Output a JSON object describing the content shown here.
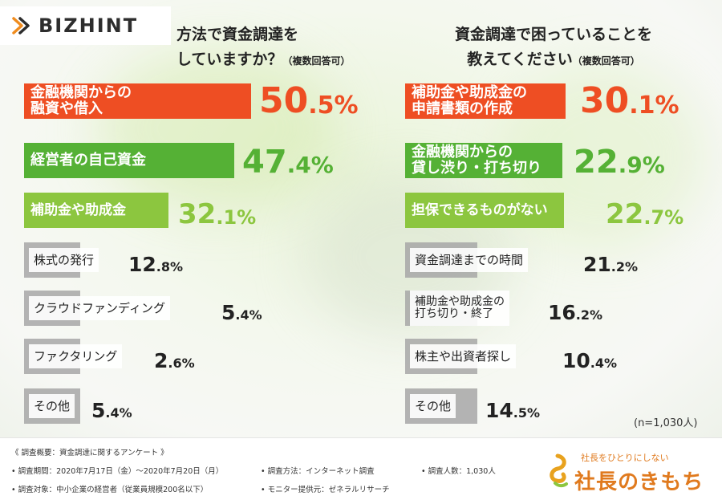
{
  "logo": {
    "text": "BIZHINT",
    "icon": "bizhint-chevron-icon"
  },
  "left_title": {
    "line1": "方法で資金調達を",
    "line2": "していますか？",
    "note": "（複数回答可）"
  },
  "right_title": {
    "line1": "資金調達で困っていることを",
    "line2": "教えてください",
    "note": "（複数回答可）"
  },
  "sample_note": "(n=1,030人)",
  "colors": {
    "top1": "#ee4e23",
    "top2": "#55b135",
    "top3": "#8cc63f",
    "other": "#a7a7a7",
    "brand": "#e07a1e"
  },
  "chart_data": [
    {
      "type": "bar",
      "orientation": "horizontal",
      "title": "方法で資金調達をしていますか？（複数回答可）",
      "unit": "%",
      "categories": [
        "金融機関からの融資や借入",
        "経営者の自己資金",
        "補助金や助成金",
        "株式の発行",
        "クラウドファンディング",
        "ファクタリング",
        "その他"
      ],
      "category_lines": [
        [
          "金融機関からの",
          "融資や借入"
        ],
        [
          "経営者の自己資金"
        ],
        [
          "補助金や助成金"
        ],
        [
          "株式の発行"
        ],
        [
          "クラウドファンディング"
        ],
        [
          "ファクタリング"
        ],
        [
          "その他"
        ]
      ],
      "values": [
        50.5,
        47.4,
        32.1,
        12.8,
        5.4,
        2.6,
        5.4
      ],
      "value_labels": [
        [
          "50",
          ".5%"
        ],
        [
          "47",
          ".4%"
        ],
        [
          "32",
          ".1%"
        ],
        [
          "12",
          ".8%"
        ],
        [
          "5",
          ".4%"
        ],
        [
          "2",
          ".6%"
        ],
        [
          "5",
          ".4%"
        ]
      ]
    },
    {
      "type": "bar",
      "orientation": "horizontal",
      "title": "資金調達で困っていることを教えてください（複数回答可）",
      "unit": "%",
      "categories": [
        "補助金や助成金の申請書類の作成",
        "金融機関からの貸し渋り・打ち切り",
        "担保できるものがない",
        "資金調達までの時間",
        "補助金や助成金の打ち切り・終了",
        "株主や出資者探し",
        "その他"
      ],
      "category_lines": [
        [
          "補助金や助成金の",
          "申請書類の作成"
        ],
        [
          "金融機関からの",
          "貸し渋り・打ち切り"
        ],
        [
          "担保できるものがない"
        ],
        [
          "資金調達までの時間"
        ],
        [
          "補助金や助成金の",
          "打ち切り・終了"
        ],
        [
          "株主や出資者探し"
        ],
        [
          "その他"
        ]
      ],
      "values": [
        30.1,
        22.9,
        22.7,
        21.2,
        16.2,
        10.4,
        14.5
      ],
      "value_labels": [
        [
          "30",
          ".1%"
        ],
        [
          "22",
          ".9%"
        ],
        [
          "22",
          ".7%"
        ],
        [
          "21",
          ".2%"
        ],
        [
          "16",
          ".2%"
        ],
        [
          "10",
          ".4%"
        ],
        [
          "14",
          ".5%"
        ]
      ]
    }
  ],
  "footer": {
    "heading": "《 調査概要：資金調達に関するアンケート 》",
    "period": "• 調査期間：2020年7月17日（金）〜2020年7月20日（月）",
    "method": "• 調査方法：インターネット調査",
    "count": "• 調査人数：1,030人",
    "target": "• 調査対象：中小企業の経営者（従業員規模200名以下）",
    "provider": "• モニター提供元：ゼネラルリサーチ"
  },
  "brand": {
    "sub": "社長をひとりにしない",
    "name": "社長のきもち",
    "icon": "brand-swirl-icon"
  }
}
